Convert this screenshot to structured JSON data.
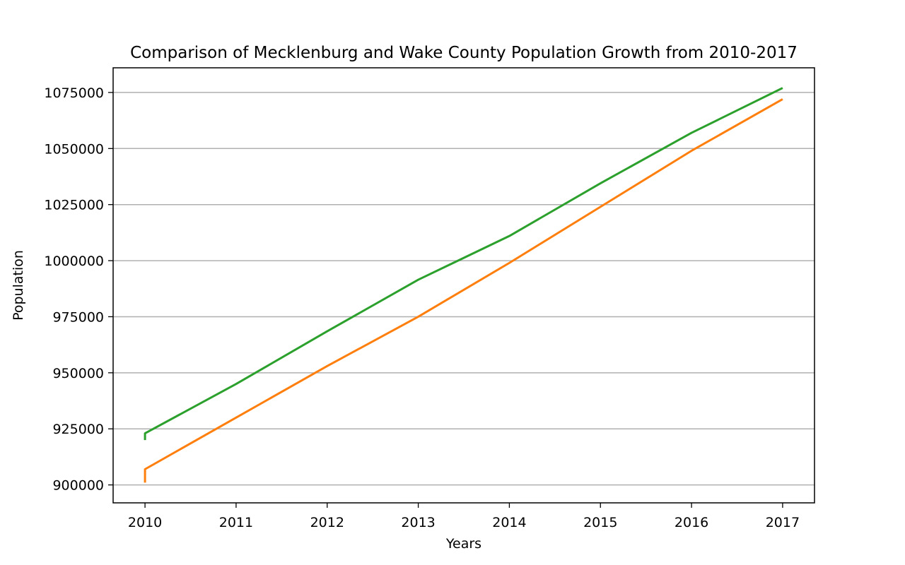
{
  "chart_data": {
    "type": "line",
    "title": "Comparison of Mecklenburg and Wake County Population Growth from 2010-2017",
    "xlabel": "Years",
    "ylabel": "Population",
    "x_ticks": [
      2010,
      2011,
      2012,
      2013,
      2014,
      2015,
      2016,
      2017
    ],
    "y_ticks": [
      900000,
      925000,
      950000,
      975000,
      1000000,
      1025000,
      1050000,
      1075000
    ],
    "xlim": [
      2009.65,
      2017.35
    ],
    "ylim": [
      892000,
      1086000
    ],
    "grid": "y",
    "legend": "none",
    "series": [
      {
        "color": "#2ca02c",
        "points": [
          [
            2010,
            920000
          ],
          [
            2010,
            923000
          ],
          [
            2011,
            945000
          ],
          [
            2012,
            968500
          ],
          [
            2013,
            991500
          ],
          [
            2014,
            1011000
          ],
          [
            2015,
            1034500
          ],
          [
            2016,
            1057000
          ],
          [
            2017,
            1077000
          ]
        ]
      },
      {
        "color": "#ff7f0e",
        "points": [
          [
            2010,
            901000
          ],
          [
            2010,
            907000
          ],
          [
            2011,
            930000
          ],
          [
            2012,
            953000
          ],
          [
            2013,
            975000
          ],
          [
            2014,
            999000
          ],
          [
            2015,
            1024000
          ],
          [
            2016,
            1049000
          ],
          [
            2017,
            1072000
          ]
        ]
      }
    ]
  }
}
